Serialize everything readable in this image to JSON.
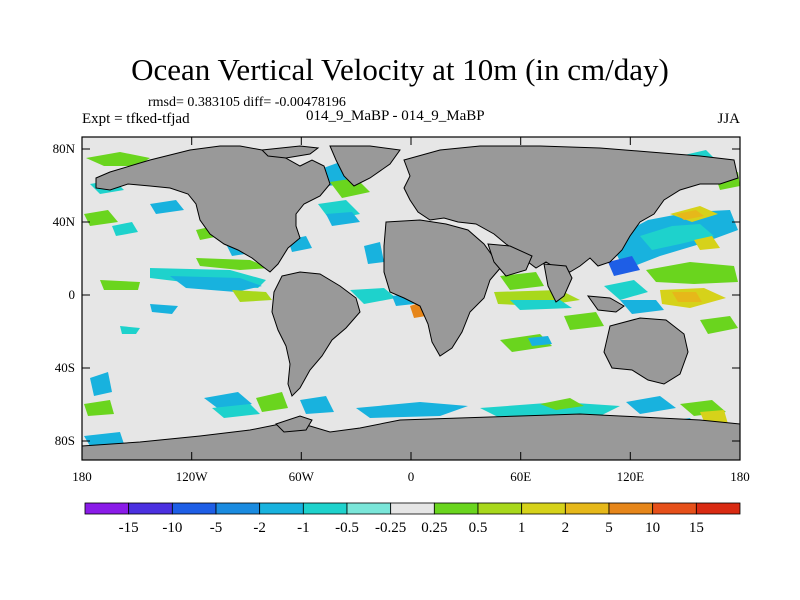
{
  "title": "Ocean Vertical Velocity at 10m (in cm/day)",
  "stats_line": "rmsd= 0.383105 diff= -0.00478196",
  "expt_line": "Expt = tfked-tfjad",
  "case_line": "014_9_MaBP - 014_9_MaBP",
  "season": "JJA",
  "axes": {
    "lon_ticks": [
      "180",
      "120W",
      "60W",
      "0",
      "60E",
      "120E",
      "180"
    ],
    "lat_ticks": [
      "80N",
      "40N",
      "0",
      "40S",
      "80S"
    ]
  },
  "colorbar": {
    "labels": [
      "-15",
      "-10",
      "-5",
      "-2",
      "-1",
      "-0.5",
      "-0.25",
      "0.25",
      "0.5",
      "1",
      "2",
      "5",
      "10",
      "15"
    ],
    "colors": [
      "#8a1be8",
      "#4b30e0",
      "#1e5ee6",
      "#1a8be0",
      "#18b2de",
      "#1ed2cc",
      "#7ae6d9",
      "#e6e6e6",
      "#6ad51e",
      "#a8d81c",
      "#d6d21a",
      "#e6b81a",
      "#e6861a",
      "#e6501a",
      "#d92a12"
    ]
  },
  "colors": {
    "land": "#999999",
    "ocean": "#e6e6e6",
    "coast": "#000000"
  }
}
